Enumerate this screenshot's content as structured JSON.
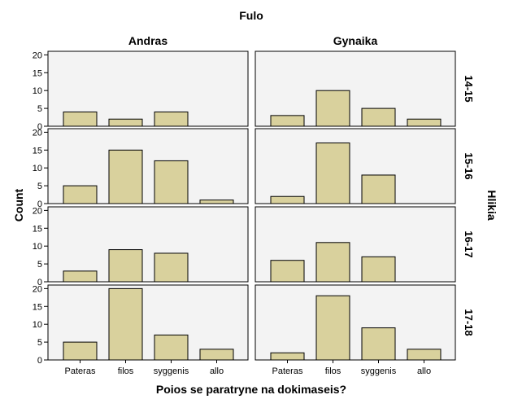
{
  "chart_data": {
    "type": "bar",
    "layout": "trellis",
    "title": "Fulo",
    "xlabel": "Poios se paratryne na dokimaseis?",
    "ylabel": "Count",
    "row_label": "Hlikia",
    "columns": [
      "Andras",
      "Gynaika"
    ],
    "rows": [
      "14-15",
      "15-16",
      "16-17",
      "17-18"
    ],
    "categories": [
      "Pateras",
      "filos",
      "syggenis",
      "allo"
    ],
    "yticks": [
      0,
      5,
      10,
      15,
      20
    ],
    "ylim": [
      0,
      21
    ],
    "panels": [
      {
        "row": "14-15",
        "column": "Andras",
        "values": [
          4,
          2,
          4,
          0
        ]
      },
      {
        "row": "14-15",
        "column": "Gynaika",
        "values": [
          3,
          10,
          5,
          2
        ]
      },
      {
        "row": "15-16",
        "column": "Andras",
        "values": [
          5,
          15,
          12,
          1
        ]
      },
      {
        "row": "15-16",
        "column": "Gynaika",
        "values": [
          2,
          17,
          8,
          0
        ]
      },
      {
        "row": "16-17",
        "column": "Andras",
        "values": [
          3,
          9,
          8,
          0
        ]
      },
      {
        "row": "16-17",
        "column": "Gynaika",
        "values": [
          6,
          11,
          7,
          0
        ]
      },
      {
        "row": "17-18",
        "column": "Andras",
        "values": [
          5,
          20,
          7,
          3
        ]
      },
      {
        "row": "17-18",
        "column": "Gynaika",
        "values": [
          2,
          18,
          9,
          3
        ]
      }
    ],
    "colors": {
      "bar": "#d9d19d",
      "bar_stroke": "#000000",
      "panel_bg": "#f3f3f3",
      "panel_border": "#000000"
    }
  }
}
